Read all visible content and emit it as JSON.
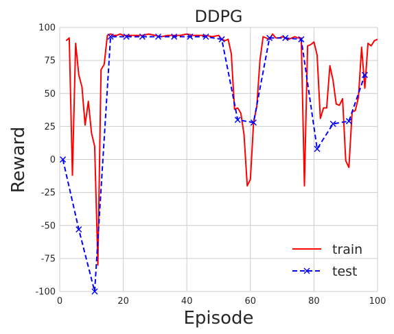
{
  "chart_data": {
    "type": "line",
    "title": "DDPG",
    "xlabel": "Episode",
    "ylabel": "Reward",
    "xlim": [
      0,
      100
    ],
    "ylim": [
      -100,
      100
    ],
    "xticks": [
      0,
      20,
      40,
      60,
      80,
      100
    ],
    "yticks": [
      -100,
      -75,
      -50,
      -25,
      0,
      25,
      50,
      75,
      100
    ],
    "grid": true,
    "legend_position": "bottom-right",
    "series": [
      {
        "name": "train",
        "color": "#ff0000",
        "style": "solid",
        "marker": "none",
        "x": [
          2,
          3,
          4,
          5,
          6,
          7,
          8,
          9,
          10,
          11,
          12,
          13,
          14,
          15,
          16,
          17,
          18,
          19,
          20,
          22,
          24,
          26,
          28,
          30,
          32,
          34,
          36,
          38,
          40,
          42,
          44,
          46,
          48,
          50,
          51,
          52,
          53,
          54,
          55,
          56,
          57,
          58,
          59,
          60,
          61,
          62,
          63,
          64,
          65,
          66,
          67,
          68,
          69,
          70,
          71,
          72,
          73,
          74,
          75,
          76,
          77,
          78,
          79,
          80,
          81,
          82,
          83,
          84,
          85,
          86,
          87,
          88,
          89,
          90,
          91,
          92,
          93,
          94,
          95,
          96,
          97,
          98,
          99,
          100
        ],
        "y": [
          90,
          92,
          -12,
          88,
          64,
          55,
          26,
          44,
          20,
          10,
          -80,
          68,
          72,
          94,
          95,
          94,
          94,
          95,
          94,
          94,
          94,
          94,
          95,
          94,
          93,
          94,
          94,
          94,
          95,
          94,
          94,
          94,
          93,
          94,
          91,
          90,
          91,
          80,
          38,
          39,
          35,
          19,
          -20,
          -15,
          28,
          40,
          75,
          93,
          92,
          91,
          95,
          92,
          92,
          93,
          92,
          91,
          92,
          93,
          92,
          92,
          -20,
          86,
          87,
          89,
          79,
          31,
          39,
          39,
          71,
          60,
          42,
          41,
          46,
          -1,
          -6,
          36,
          37,
          47,
          85,
          54,
          88,
          86,
          90,
          91
        ]
      },
      {
        "name": "test",
        "color": "#0000ff",
        "style": "dashed",
        "marker": "x",
        "x": [
          1,
          6,
          11,
          16,
          21,
          26,
          31,
          36,
          41,
          46,
          51,
          56,
          61,
          66,
          71,
          76,
          81,
          86,
          91,
          96
        ],
        "y": [
          0,
          -53,
          -100,
          93,
          93,
          93,
          93,
          93,
          93,
          93,
          91,
          30,
          28,
          92,
          92,
          91,
          8,
          27,
          29,
          64
        ]
      }
    ]
  }
}
